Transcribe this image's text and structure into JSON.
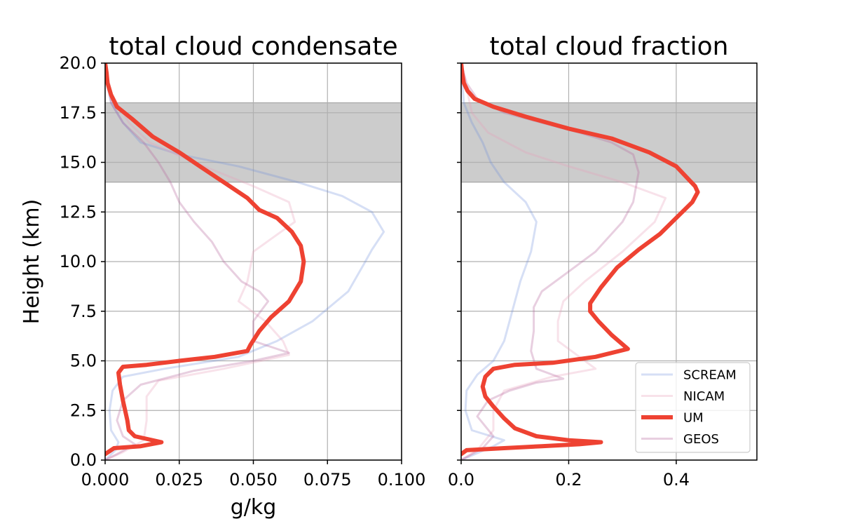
{
  "colors": {
    "SCREAM": "#6b8bdc",
    "NICAM": "#e8a0b8",
    "UM": "#ee4232",
    "GEOS": "#b86a9e",
    "band": "#cccccc",
    "grid": "#b0b0b0"
  },
  "chart_data": [
    {
      "type": "line",
      "title": "total cloud condensate",
      "xlabel": "g/kg",
      "ylabel": "Height (km)",
      "xlim": [
        0.0,
        0.1
      ],
      "ylim": [
        0.0,
        20.0
      ],
      "xticks": [
        "0.000",
        "0.025",
        "0.050",
        "0.075",
        "0.100"
      ],
      "yticks": [
        "0.0",
        "2.5",
        "5.0",
        "7.5",
        "10.0",
        "12.5",
        "15.0",
        "17.5",
        "20.0"
      ],
      "grid": true,
      "shaded_band": [
        14.0,
        18.0
      ],
      "series": [
        {
          "name": "SCREAM",
          "points": [
            [
              0.0,
              0.0
            ],
            [
              0.0035,
              0.5
            ],
            [
              0.0045,
              0.9
            ],
            [
              0.002,
              1.5
            ],
            [
              0.0015,
              2.5
            ],
            [
              0.0025,
              3.5
            ],
            [
              0.006,
              4.2
            ],
            [
              0.02,
              4.6
            ],
            [
              0.045,
              5.2
            ],
            [
              0.058,
              6.0
            ],
            [
              0.07,
              7.0
            ],
            [
              0.082,
              8.5
            ],
            [
              0.087,
              9.8
            ],
            [
              0.09,
              10.6
            ],
            [
              0.094,
              11.5
            ],
            [
              0.09,
              12.5
            ],
            [
              0.08,
              13.3
            ],
            [
              0.065,
              14.0
            ],
            [
              0.045,
              14.8
            ],
            [
              0.025,
              15.4
            ],
            [
              0.012,
              16.0
            ],
            [
              0.006,
              17.0
            ],
            [
              0.002,
              18.0
            ],
            [
              0.0005,
              19.0
            ],
            [
              0.0,
              20.0
            ]
          ]
        },
        {
          "name": "NICAM",
          "points": [
            [
              0.0,
              0.0
            ],
            [
              0.006,
              0.4
            ],
            [
              0.013,
              1.0
            ],
            [
              0.014,
              2.0
            ],
            [
              0.014,
              3.2
            ],
            [
              0.018,
              4.0
            ],
            [
              0.04,
              4.6
            ],
            [
              0.062,
              5.3
            ],
            [
              0.06,
              6.0
            ],
            [
              0.054,
              7.0
            ],
            [
              0.045,
              8.0
            ],
            [
              0.048,
              9.0
            ],
            [
              0.05,
              10.5
            ],
            [
              0.064,
              12.0
            ],
            [
              0.062,
              13.0
            ],
            [
              0.05,
              13.8
            ],
            [
              0.03,
              15.0
            ],
            [
              0.015,
              16.0
            ],
            [
              0.008,
              17.0
            ],
            [
              0.002,
              18.5
            ],
            [
              0.0,
              20.0
            ]
          ]
        },
        {
          "name": "UM",
          "points": [
            [
              0.0,
              0.3
            ],
            [
              0.003,
              0.6
            ],
            [
              0.012,
              0.7
            ],
            [
              0.019,
              0.9
            ],
            [
              0.01,
              1.2
            ],
            [
              0.008,
              1.5
            ],
            [
              0.0075,
              2.0
            ],
            [
              0.006,
              3.0
            ],
            [
              0.005,
              3.8
            ],
            [
              0.0045,
              4.4
            ],
            [
              0.006,
              4.7
            ],
            [
              0.014,
              4.8
            ],
            [
              0.025,
              5.0
            ],
            [
              0.037,
              5.2
            ],
            [
              0.048,
              5.5
            ],
            [
              0.049,
              5.8
            ],
            [
              0.052,
              6.5
            ],
            [
              0.056,
              7.2
            ],
            [
              0.062,
              8.0
            ],
            [
              0.066,
              9.0
            ],
            [
              0.067,
              10.0
            ],
            [
              0.066,
              10.8
            ],
            [
              0.063,
              11.5
            ],
            [
              0.058,
              12.2
            ],
            [
              0.052,
              12.6
            ],
            [
              0.048,
              13.2
            ],
            [
              0.04,
              14.0
            ],
            [
              0.032,
              14.8
            ],
            [
              0.025,
              15.5
            ],
            [
              0.016,
              16.3
            ],
            [
              0.009,
              17.2
            ],
            [
              0.004,
              17.8
            ],
            [
              0.002,
              18.4
            ],
            [
              0.0008,
              19.0
            ],
            [
              0.0005,
              19.5
            ],
            [
              0.0,
              20.0
            ]
          ]
        },
        {
          "name": "GEOS",
          "points": [
            [
              0.0,
              0.0
            ],
            [
              0.004,
              0.3
            ],
            [
              0.01,
              0.8
            ],
            [
              0.006,
              1.2
            ],
            [
              0.004,
              2.0
            ],
            [
              0.006,
              3.0
            ],
            [
              0.012,
              3.8
            ],
            [
              0.03,
              4.5
            ],
            [
              0.05,
              5.0
            ],
            [
              0.062,
              5.4
            ],
            [
              0.05,
              6.0
            ],
            [
              0.05,
              7.0
            ],
            [
              0.055,
              8.0
            ],
            [
              0.052,
              8.5
            ],
            [
              0.046,
              9.0
            ],
            [
              0.04,
              10.0
            ],
            [
              0.036,
              11.0
            ],
            [
              0.03,
              12.0
            ],
            [
              0.025,
              13.0
            ],
            [
              0.022,
              14.0
            ],
            [
              0.018,
              15.0
            ],
            [
              0.013,
              16.0
            ],
            [
              0.006,
              17.0
            ],
            [
              0.002,
              18.0
            ],
            [
              0.0,
              20.0
            ]
          ]
        }
      ]
    },
    {
      "type": "line",
      "title": "total cloud fraction",
      "xlabel": "",
      "ylabel": "",
      "xlim": [
        0.0,
        0.55
      ],
      "ylim": [
        0.0,
        20.0
      ],
      "xticks": [
        "0.0",
        "0.2",
        "0.4"
      ],
      "grid": true,
      "shaded_band": [
        14.0,
        18.0
      ],
      "series": [
        {
          "name": "SCREAM",
          "points": [
            [
              0.0,
              0.0
            ],
            [
              0.06,
              0.7
            ],
            [
              0.08,
              1.0
            ],
            [
              0.02,
              1.5
            ],
            [
              0.008,
              2.5
            ],
            [
              0.01,
              3.5
            ],
            [
              0.03,
              4.3
            ],
            [
              0.06,
              5.0
            ],
            [
              0.08,
              6.0
            ],
            [
              0.095,
              7.5
            ],
            [
              0.11,
              9.0
            ],
            [
              0.13,
              10.5
            ],
            [
              0.14,
              12.0
            ],
            [
              0.12,
              13.0
            ],
            [
              0.08,
              14.0
            ],
            [
              0.055,
              15.0
            ],
            [
              0.04,
              16.0
            ],
            [
              0.02,
              17.0
            ],
            [
              0.005,
              18.0
            ],
            [
              0.0,
              20.0
            ]
          ]
        },
        {
          "name": "NICAM",
          "points": [
            [
              0.0,
              0.0
            ],
            [
              0.03,
              0.5
            ],
            [
              0.06,
              1.5
            ],
            [
              0.06,
              2.5
            ],
            [
              0.08,
              3.5
            ],
            [
              0.17,
              4.2
            ],
            [
              0.25,
              4.6
            ],
            [
              0.22,
              5.2
            ],
            [
              0.18,
              6.0
            ],
            [
              0.18,
              7.0
            ],
            [
              0.19,
              8.0
            ],
            [
              0.23,
              9.0
            ],
            [
              0.3,
              10.5
            ],
            [
              0.36,
              12.0
            ],
            [
              0.38,
              13.2
            ],
            [
              0.3,
              14.0
            ],
            [
              0.2,
              14.8
            ],
            [
              0.12,
              15.5
            ],
            [
              0.05,
              16.5
            ],
            [
              0.02,
              17.5
            ],
            [
              0.0,
              20.0
            ]
          ]
        },
        {
          "name": "UM",
          "points": [
            [
              0.0,
              0.3
            ],
            [
              0.01,
              0.5
            ],
            [
              0.08,
              0.6
            ],
            [
              0.15,
              0.7
            ],
            [
              0.22,
              0.8
            ],
            [
              0.26,
              0.9
            ],
            [
              0.2,
              1.0
            ],
            [
              0.14,
              1.2
            ],
            [
              0.1,
              1.6
            ],
            [
              0.08,
              2.1
            ],
            [
              0.06,
              2.7
            ],
            [
              0.045,
              3.2
            ],
            [
              0.04,
              3.7
            ],
            [
              0.045,
              4.2
            ],
            [
              0.06,
              4.6
            ],
            [
              0.1,
              4.8
            ],
            [
              0.17,
              4.9
            ],
            [
              0.25,
              5.2
            ],
            [
              0.31,
              5.6
            ],
            [
              0.28,
              6.3
            ],
            [
              0.255,
              7.0
            ],
            [
              0.24,
              7.5
            ],
            [
              0.24,
              7.9
            ],
            [
              0.26,
              8.7
            ],
            [
              0.29,
              9.7
            ],
            [
              0.33,
              10.6
            ],
            [
              0.37,
              11.4
            ],
            [
              0.4,
              12.2
            ],
            [
              0.43,
              13.0
            ],
            [
              0.44,
              13.5
            ],
            [
              0.435,
              13.8
            ],
            [
              0.4,
              14.8
            ],
            [
              0.35,
              15.5
            ],
            [
              0.28,
              16.2
            ],
            [
              0.2,
              16.7
            ],
            [
              0.12,
              17.3
            ],
            [
              0.06,
              17.8
            ],
            [
              0.025,
              18.2
            ],
            [
              0.012,
              18.6
            ],
            [
              0.005,
              19.0
            ],
            [
              0.002,
              19.5
            ],
            [
              0.0,
              20.0
            ]
          ]
        },
        {
          "name": "GEOS",
          "points": [
            [
              0.0,
              0.0
            ],
            [
              0.04,
              0.6
            ],
            [
              0.06,
              1.2
            ],
            [
              0.03,
              2.2
            ],
            [
              0.05,
              3.0
            ],
            [
              0.09,
              3.5
            ],
            [
              0.14,
              3.9
            ],
            [
              0.19,
              4.1
            ],
            [
              0.14,
              4.6
            ],
            [
              0.13,
              5.5
            ],
            [
              0.135,
              6.5
            ],
            [
              0.135,
              7.7
            ],
            [
              0.15,
              8.5
            ],
            [
              0.2,
              9.5
            ],
            [
              0.25,
              10.5
            ],
            [
              0.3,
              12.0
            ],
            [
              0.32,
              13.0
            ],
            [
              0.33,
              14.5
            ],
            [
              0.32,
              15.4
            ],
            [
              0.28,
              16.0
            ],
            [
              0.22,
              16.5
            ],
            [
              0.15,
              17.0
            ],
            [
              0.08,
              17.5
            ],
            [
              0.03,
              18.2
            ],
            [
              0.01,
              19.0
            ],
            [
              0.0,
              20.0
            ]
          ]
        }
      ]
    }
  ],
  "legend": {
    "position": "lower-right",
    "entries": [
      "SCREAM",
      "NICAM",
      "UM",
      "GEOS"
    ]
  }
}
